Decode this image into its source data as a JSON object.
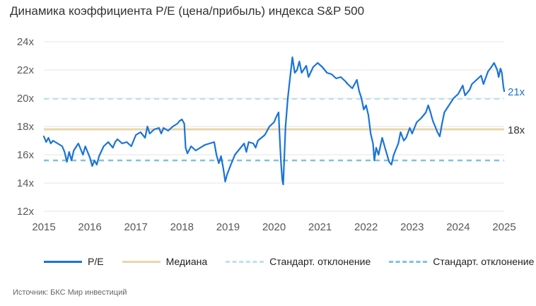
{
  "chart_data": {
    "type": "line",
    "title": "Динамика коэффициента P/E (цена/прибыль) индекса S&P 500",
    "xlabel": "",
    "ylabel": "",
    "xlim": [
      2015,
      2025
    ],
    "ylim": [
      12,
      24
    ],
    "x_ticks": [
      "2015",
      "2016",
      "2017",
      "2018",
      "2019",
      "2020",
      "2021",
      "2022",
      "2023",
      "2024",
      "2025"
    ],
    "y_ticks": [
      {
        "value": 24,
        "label": "24x"
      },
      {
        "value": 22,
        "label": "22x"
      },
      {
        "value": 20,
        "label": "20x"
      },
      {
        "value": 18,
        "label": "18x"
      },
      {
        "value": 16,
        "label": "16x"
      },
      {
        "value": 14,
        "label": "14x"
      },
      {
        "value": 12,
        "label": "12x"
      }
    ],
    "series": [
      {
        "name": "P/E",
        "color": "#1a73d9",
        "points": [
          [
            2015.0,
            17.3
          ],
          [
            2015.05,
            16.9
          ],
          [
            2015.1,
            17.2
          ],
          [
            2015.15,
            16.8
          ],
          [
            2015.2,
            17.0
          ],
          [
            2015.3,
            16.8
          ],
          [
            2015.4,
            16.6
          ],
          [
            2015.45,
            16.2
          ],
          [
            2015.5,
            15.5
          ],
          [
            2015.55,
            16.2
          ],
          [
            2015.6,
            15.6
          ],
          [
            2015.65,
            16.3
          ],
          [
            2015.75,
            16.8
          ],
          [
            2015.8,
            16.4
          ],
          [
            2015.85,
            16.0
          ],
          [
            2015.9,
            16.6
          ],
          [
            2016.0,
            15.8
          ],
          [
            2016.05,
            15.2
          ],
          [
            2016.1,
            15.6
          ],
          [
            2016.15,
            15.3
          ],
          [
            2016.2,
            15.9
          ],
          [
            2016.3,
            16.6
          ],
          [
            2016.4,
            16.9
          ],
          [
            2016.5,
            16.5
          ],
          [
            2016.55,
            16.9
          ],
          [
            2016.6,
            17.1
          ],
          [
            2016.7,
            16.8
          ],
          [
            2016.8,
            16.9
          ],
          [
            2016.9,
            16.6
          ],
          [
            2016.95,
            17.0
          ],
          [
            2017.0,
            17.4
          ],
          [
            2017.1,
            17.6
          ],
          [
            2017.2,
            17.2
          ],
          [
            2017.25,
            18.0
          ],
          [
            2017.3,
            17.5
          ],
          [
            2017.4,
            17.8
          ],
          [
            2017.5,
            17.9
          ],
          [
            2017.55,
            17.5
          ],
          [
            2017.6,
            17.9
          ],
          [
            2017.7,
            17.7
          ],
          [
            2017.8,
            18.0
          ],
          [
            2017.9,
            18.2
          ],
          [
            2017.95,
            18.4
          ],
          [
            2018.0,
            18.5
          ],
          [
            2018.05,
            18.2
          ],
          [
            2018.08,
            16.5
          ],
          [
            2018.12,
            16.1
          ],
          [
            2018.2,
            16.6
          ],
          [
            2018.3,
            16.3
          ],
          [
            2018.4,
            16.5
          ],
          [
            2018.5,
            16.7
          ],
          [
            2018.6,
            16.8
          ],
          [
            2018.7,
            16.9
          ],
          [
            2018.75,
            16.0
          ],
          [
            2018.8,
            15.4
          ],
          [
            2018.85,
            15.9
          ],
          [
            2018.9,
            15.0
          ],
          [
            2018.94,
            14.1
          ],
          [
            2018.98,
            14.6
          ],
          [
            2019.05,
            15.2
          ],
          [
            2019.15,
            16.0
          ],
          [
            2019.25,
            16.4
          ],
          [
            2019.35,
            16.8
          ],
          [
            2019.4,
            16.2
          ],
          [
            2019.45,
            16.9
          ],
          [
            2019.55,
            16.8
          ],
          [
            2019.6,
            16.5
          ],
          [
            2019.65,
            17.0
          ],
          [
            2019.8,
            17.4
          ],
          [
            2019.9,
            18.0
          ],
          [
            2020.0,
            18.3
          ],
          [
            2020.05,
            18.7
          ],
          [
            2020.1,
            19.0
          ],
          [
            2020.12,
            17.5
          ],
          [
            2020.15,
            15.5
          ],
          [
            2020.18,
            14.2
          ],
          [
            2020.2,
            13.9
          ],
          [
            2020.22,
            15.5
          ],
          [
            2020.25,
            18.0
          ],
          [
            2020.3,
            20.0
          ],
          [
            2020.35,
            21.5
          ],
          [
            2020.4,
            22.9
          ],
          [
            2020.45,
            21.8
          ],
          [
            2020.5,
            22.0
          ],
          [
            2020.55,
            22.6
          ],
          [
            2020.6,
            21.8
          ],
          [
            2020.7,
            22.3
          ],
          [
            2020.75,
            21.5
          ],
          [
            2020.85,
            22.2
          ],
          [
            2020.95,
            22.5
          ],
          [
            2021.05,
            22.2
          ],
          [
            2021.15,
            21.8
          ],
          [
            2021.25,
            21.7
          ],
          [
            2021.35,
            21.4
          ],
          [
            2021.45,
            21.5
          ],
          [
            2021.55,
            21.2
          ],
          [
            2021.6,
            21.0
          ],
          [
            2021.7,
            20.7
          ],
          [
            2021.8,
            21.3
          ],
          [
            2021.85,
            20.5
          ],
          [
            2021.9,
            20.0
          ],
          [
            2021.95,
            19.2
          ],
          [
            2022.0,
            19.5
          ],
          [
            2022.05,
            18.8
          ],
          [
            2022.1,
            17.5
          ],
          [
            2022.15,
            16.8
          ],
          [
            2022.18,
            15.6
          ],
          [
            2022.22,
            16.5
          ],
          [
            2022.27,
            16.0
          ],
          [
            2022.35,
            17.2
          ],
          [
            2022.42,
            16.4
          ],
          [
            2022.5,
            15.5
          ],
          [
            2022.55,
            15.3
          ],
          [
            2022.6,
            16.0
          ],
          [
            2022.7,
            16.8
          ],
          [
            2022.75,
            17.6
          ],
          [
            2022.82,
            17.0
          ],
          [
            2022.87,
            17.2
          ],
          [
            2022.95,
            17.9
          ],
          [
            2023.0,
            17.5
          ],
          [
            2023.1,
            18.3
          ],
          [
            2023.2,
            18.6
          ],
          [
            2023.3,
            19.0
          ],
          [
            2023.35,
            19.5
          ],
          [
            2023.4,
            19.0
          ],
          [
            2023.45,
            18.4
          ],
          [
            2023.5,
            18.0
          ],
          [
            2023.55,
            17.6
          ],
          [
            2023.6,
            17.3
          ],
          [
            2023.65,
            18.2
          ],
          [
            2023.7,
            19.0
          ],
          [
            2023.8,
            19.5
          ],
          [
            2023.9,
            20.0
          ],
          [
            2024.0,
            20.3
          ],
          [
            2024.05,
            20.6
          ],
          [
            2024.1,
            20.9
          ],
          [
            2024.15,
            20.2
          ],
          [
            2024.25,
            20.6
          ],
          [
            2024.3,
            21.0
          ],
          [
            2024.4,
            21.3
          ],
          [
            2024.5,
            21.6
          ],
          [
            2024.55,
            21.0
          ],
          [
            2024.65,
            21.9
          ],
          [
            2024.72,
            22.2
          ],
          [
            2024.78,
            22.5
          ],
          [
            2024.85,
            22.0
          ],
          [
            2024.88,
            21.5
          ],
          [
            2024.92,
            22.1
          ],
          [
            2024.95,
            21.8
          ],
          [
            2024.98,
            20.9
          ],
          [
            2025.0,
            20.5
          ]
        ]
      },
      {
        "name": "Медиана",
        "color": "#e8d6ac",
        "value": 17.8
      },
      {
        "name": "Стандарт. отклонение",
        "color": "#bfe0ef",
        "value": 19.95
      },
      {
        "name": "Стандарт. отклонение",
        "color": "#7ec3dd",
        "value": 15.6
      }
    ],
    "annotations": [
      {
        "text": "21x",
        "y": 20.5,
        "color": "#1a73d9"
      },
      {
        "text": "18x",
        "y": 17.8,
        "color": "#333333"
      }
    ],
    "source": "Источник: БКС Мир инвестиций"
  }
}
